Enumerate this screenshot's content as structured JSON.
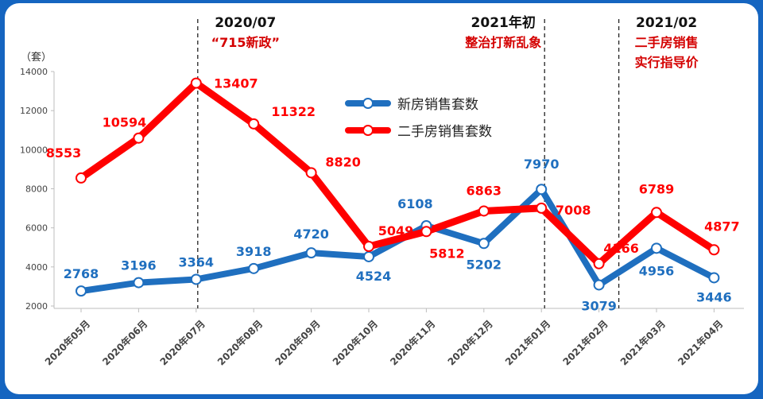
{
  "chart_data": {
    "type": "line",
    "unit_label": "（套）",
    "ylim": [
      2000,
      14000
    ],
    "yticks": [
      2000,
      4000,
      6000,
      8000,
      10000,
      12000,
      14000
    ],
    "grid": false,
    "legend_position": "top-center",
    "categories": [
      "2020年05月",
      "2020年06月",
      "2020年07月",
      "2020年08月",
      "2020年09月",
      "2020年10月",
      "2020年11月",
      "2020年12月",
      "2021年01月",
      "2021年02月",
      "2021年03月",
      "2021年04月"
    ],
    "series": [
      {
        "name": "新房销售套数",
        "color": "#1f6fbf",
        "values": [
          2768,
          3196,
          3364,
          3918,
          4720,
          4524,
          6108,
          5202,
          7970,
          3079,
          4956,
          3446
        ]
      },
      {
        "name": "二手房销售套数",
        "color": "#ff0000",
        "values": [
          8553,
          10594,
          13407,
          11322,
          8820,
          5049,
          5812,
          6863,
          7008,
          4166,
          6789,
          4877
        ]
      }
    ],
    "annotations": [
      {
        "category_index": 2,
        "lines": [
          "2020/07",
          "“715新政”"
        ]
      },
      {
        "category_index": 8,
        "lines": [
          "2021年初",
          "整治打新乱象"
        ]
      },
      {
        "category_index": 9,
        "lines": [
          "2021/02",
          "二手房销售",
          "实行指导价"
        ]
      }
    ]
  }
}
